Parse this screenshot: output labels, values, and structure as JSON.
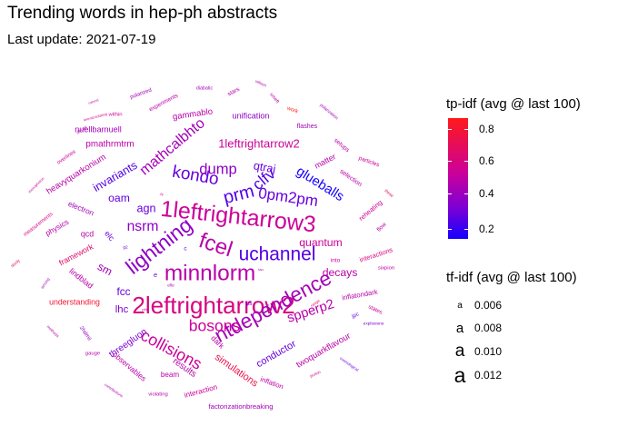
{
  "title": "Trending words in hep-ph abstracts",
  "subtitle": "Last update: 2021-07-19",
  "legend_color": {
    "title": "tp-idf  (avg @ last 100)",
    "ticks": [
      "0.8",
      "0.6",
      "0.4",
      "0.2"
    ],
    "colors": [
      "#ff1a1a",
      "#cc0099",
      "#7a00d6",
      "#1500ff"
    ]
  },
  "legend_size": {
    "title": "tf-idf (avg @ last 100)",
    "glyph": "a",
    "entries": [
      "0.006",
      "0.008",
      "0.010",
      "0.012"
    ]
  },
  "chart_data": {
    "type": "wordcloud",
    "title": "Trending words in hep-ph abstracts",
    "words": [
      {
        "text": "2leftrightarrow2",
        "size": 0.0125,
        "color": 0.65
      },
      {
        "text": "1leftrightarrow3",
        "size": 0.0123,
        "color": 0.6
      },
      {
        "text": "minnlorm",
        "size": 0.0122,
        "color": 0.55
      },
      {
        "text": "fcel",
        "size": 0.0121,
        "color": 0.55
      },
      {
        "text": "lightning",
        "size": 0.0119,
        "color": 0.45
      },
      {
        "text": "ntdependence",
        "size": 0.0118,
        "color": 0.5
      },
      {
        "text": "uchannel",
        "size": 0.0115,
        "color": 0.3
      },
      {
        "text": "prm",
        "size": 0.0113,
        "color": 0.3
      },
      {
        "text": "kondo",
        "size": 0.0111,
        "color": 0.35
      },
      {
        "text": "collisions",
        "size": 0.0109,
        "color": 0.6
      },
      {
        "text": "bosons",
        "size": 0.0108,
        "color": 0.6
      },
      {
        "text": "clfv",
        "size": 0.0108,
        "color": 0.3
      },
      {
        "text": "0pm2pm",
        "size": 0.0107,
        "color": 0.35
      },
      {
        "text": "dump",
        "size": 0.0106,
        "color": 0.45
      },
      {
        "text": "mathcalbhto",
        "size": 0.0105,
        "color": 0.5
      },
      {
        "text": "nsrm",
        "size": 0.0104,
        "color": 0.45
      },
      {
        "text": "glueballs",
        "size": 0.0102,
        "color": 0.15
      },
      {
        "text": "spperp2",
        "size": 0.0102,
        "color": 0.55
      },
      {
        "text": "1leftrightarrow2",
        "size": 0.0098,
        "color": 0.6
      },
      {
        "text": "invariants",
        "size": 0.0097,
        "color": 0.3
      },
      {
        "text": "agn",
        "size": 0.0097,
        "color": 0.35
      },
      {
        "text": "qtraj",
        "size": 0.0097,
        "color": 0.35
      },
      {
        "text": "oam",
        "size": 0.0096,
        "color": 0.35
      },
      {
        "text": "quantum",
        "size": 0.0096,
        "color": 0.6
      },
      {
        "text": "decays",
        "size": 0.0096,
        "color": 0.55
      },
      {
        "text": "sm",
        "size": 0.0096,
        "color": 0.5
      },
      {
        "text": "fcc",
        "size": 0.0095,
        "color": 0.35
      },
      {
        "text": "lhc",
        "size": 0.0094,
        "color": 0.4
      },
      {
        "text": "simulations",
        "size": 0.0093,
        "color": 0.75
      },
      {
        "text": "conductor",
        "size": 0.0093,
        "color": 0.35
      },
      {
        "text": "threegluon",
        "size": 0.0091,
        "color": 0.4
      },
      {
        "text": "pmathrmtrm",
        "size": 0.009,
        "color": 0.55
      },
      {
        "text": "results",
        "size": 0.009,
        "color": 0.55
      },
      {
        "text": "twoquarkflavour",
        "size": 0.0089,
        "color": 0.55
      },
      {
        "text": "heavyquarkonium",
        "size": 0.0089,
        "color": 0.55
      },
      {
        "text": "gammablo",
        "size": 0.0089,
        "color": 0.55
      },
      {
        "text": "nuellbarnuell",
        "size": 0.0088,
        "color": 0.5
      },
      {
        "text": "unification",
        "size": 0.0088,
        "color": 0.45
      },
      {
        "text": "matter",
        "size": 0.0087,
        "color": 0.55
      },
      {
        "text": "elc",
        "size": 0.0087,
        "color": 0.35
      },
      {
        "text": "qcd",
        "size": 0.0087,
        "color": 0.55
      },
      {
        "text": "framework",
        "size": 0.0087,
        "color": 0.7
      },
      {
        "text": "lindblad",
        "size": 0.0087,
        "color": 0.55
      },
      {
        "text": "understanding",
        "size": 0.0087,
        "color": 0.8
      },
      {
        "text": "physics",
        "size": 0.0086,
        "color": 0.55
      },
      {
        "text": "electron",
        "size": 0.0086,
        "color": 0.5
      },
      {
        "text": "observables",
        "size": 0.0086,
        "color": 0.55
      },
      {
        "text": "dark",
        "size": 0.0086,
        "color": 0.55
      },
      {
        "text": "beam",
        "size": 0.0085,
        "color": 0.55
      },
      {
        "text": "interaction",
        "size": 0.0085,
        "color": 0.6
      },
      {
        "text": "inflation",
        "size": 0.0084,
        "color": 0.55
      },
      {
        "text": "factorizationbreaking",
        "size": 0.0084,
        "color": 0.5
      },
      {
        "text": "inflatondark",
        "size": 0.0084,
        "color": 0.55
      },
      {
        "text": "interactions",
        "size": 0.0083,
        "color": 0.65
      },
      {
        "text": "reheating",
        "size": 0.0083,
        "color": 0.6
      },
      {
        "text": "selection",
        "size": 0.0082,
        "color": 0.55
      },
      {
        "text": "flashes",
        "size": 0.0082,
        "color": 0.5
      },
      {
        "text": "setups",
        "size": 0.0081,
        "color": 0.55
      },
      {
        "text": "particles",
        "size": 0.008,
        "color": 0.6
      },
      {
        "text": "stars",
        "size": 0.008,
        "color": 0.55
      },
      {
        "text": "experiments",
        "size": 0.008,
        "color": 0.55
      },
      {
        "text": "polarized",
        "size": 0.0079,
        "color": 0.5
      },
      {
        "text": "within",
        "size": 0.0078,
        "color": 0.6
      },
      {
        "text": "overlines",
        "size": 0.0078,
        "color": 0.6
      },
      {
        "text": "measurements",
        "size": 0.0078,
        "color": 0.65
      },
      {
        "text": "study",
        "size": 0.0074,
        "color": 0.7
      },
      {
        "text": "2hdmii",
        "size": 0.0079,
        "color": 0.45
      },
      {
        "text": "gauge",
        "size": 0.0078,
        "color": 0.55
      },
      {
        "text": "violating",
        "size": 0.0078,
        "color": 0.55
      },
      {
        "text": "explosions",
        "size": 0.0074,
        "color": 0.4
      },
      {
        "text": "states",
        "size": 0.0079,
        "color": 0.6
      },
      {
        "text": "sixpion",
        "size": 0.0078,
        "color": 0.55
      },
      {
        "text": "into",
        "size": 0.008,
        "color": 0.6
      },
      {
        "text": "flow",
        "size": 0.008,
        "color": 0.55
      },
      {
        "text": "jpc",
        "size": 0.0079,
        "color": 0.35
      },
      {
        "text": "ps",
        "size": 0.0081,
        "color": 0.35
      },
      {
        "text": "work",
        "size": 0.0078,
        "color": 0.85
      },
      {
        "text": "diabatic",
        "size": 0.0076,
        "color": 0.5
      },
      {
        "text": "smeft",
        "size": 0.0076,
        "color": 0.55
      },
      {
        "text": "wilson",
        "size": 0.0073,
        "color": 0.55
      },
      {
        "text": "polarization",
        "size": 0.0074,
        "color": 0.5
      },
      {
        "text": "decay",
        "size": 0.0074,
        "color": 0.55
      },
      {
        "text": "among",
        "size": 0.0072,
        "color": 0.5
      },
      {
        "text": "these",
        "size": 0.0073,
        "color": 0.7
      },
      {
        "text": "range",
        "size": 0.0072,
        "color": 0.7
      },
      {
        "text": "proton",
        "size": 0.0072,
        "color": 0.6
      },
      {
        "text": "cosmological",
        "size": 0.0071,
        "color": 0.35
      },
      {
        "text": "methods",
        "size": 0.0072,
        "color": 0.55
      },
      {
        "text": "contributions",
        "size": 0.0071,
        "color": 0.55
      },
      {
        "text": "monophoton",
        "size": 0.007,
        "color": 0.6
      },
      {
        "text": "lorentzviolating",
        "size": 0.0069,
        "color": 0.65
      },
      {
        "text": "cancel",
        "size": 0.0069,
        "color": 0.6
      },
      {
        "text": "g2",
        "size": 0.0074,
        "color": 0.35
      },
      {
        "text": "elle",
        "size": 0.0074,
        "color": 0.55
      },
      {
        "text": "e",
        "size": 0.0083,
        "color": 0.35
      },
      {
        "text": "c",
        "size": 0.008,
        "color": 0.35
      },
      {
        "text": "pt",
        "size": 0.0069,
        "color": 0.6
      },
      {
        "text": "sd",
        "size": 0.0069,
        "color": 0.6
      },
      {
        "text": "pth",
        "size": 0.0069,
        "color": 0.6
      },
      {
        "text": "tau",
        "size": 0.0069,
        "color": 0.55
      },
      {
        "text": "b",
        "size": 0.0069,
        "color": 0.55
      }
    ],
    "color_scale": {
      "label": "tp-idf  (avg @ last 100)",
      "range": [
        0.15,
        0.85
      ],
      "ticks": [
        0.8,
        0.6,
        0.4,
        0.2
      ]
    },
    "size_scale": {
      "label": "tf-idf (avg @ last 100)",
      "ticks": [
        0.006,
        0.008,
        0.01,
        0.012
      ]
    }
  }
}
